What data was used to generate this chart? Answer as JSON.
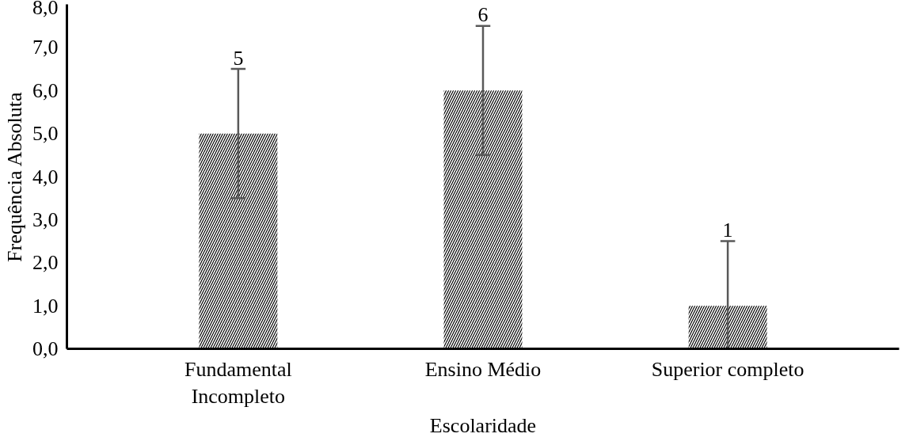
{
  "chart_data": {
    "type": "bar",
    "xlabel": "Escolaridade",
    "ylabel": "Frequência Absoluta",
    "categories": [
      "Fundamental\nIncompleto",
      "Ensino Médio",
      "Superior completo"
    ],
    "values": [
      5,
      6,
      1
    ],
    "color": "#000000",
    "errors": [
      [
        3.5,
        6.5
      ],
      [
        4.5,
        7.5
      ],
      [
        0,
        2.5
      ]
    ],
    "ylim": [
      0,
      8
    ],
    "yticks": [
      {
        "value": 0,
        "label": "0,0"
      },
      {
        "value": 1,
        "label": "1,0"
      },
      {
        "value": 2,
        "label": "2,0"
      },
      {
        "value": 3,
        "label": "3,0"
      },
      {
        "value": 4,
        "label": "4,0"
      },
      {
        "value": 5,
        "label": "5,0"
      },
      {
        "value": 6,
        "label": "6,0"
      },
      {
        "value": 7,
        "label": "7,0"
      },
      {
        "value": 8,
        "label": "8,0"
      }
    ],
    "data_labels": true,
    "grid": false
  }
}
